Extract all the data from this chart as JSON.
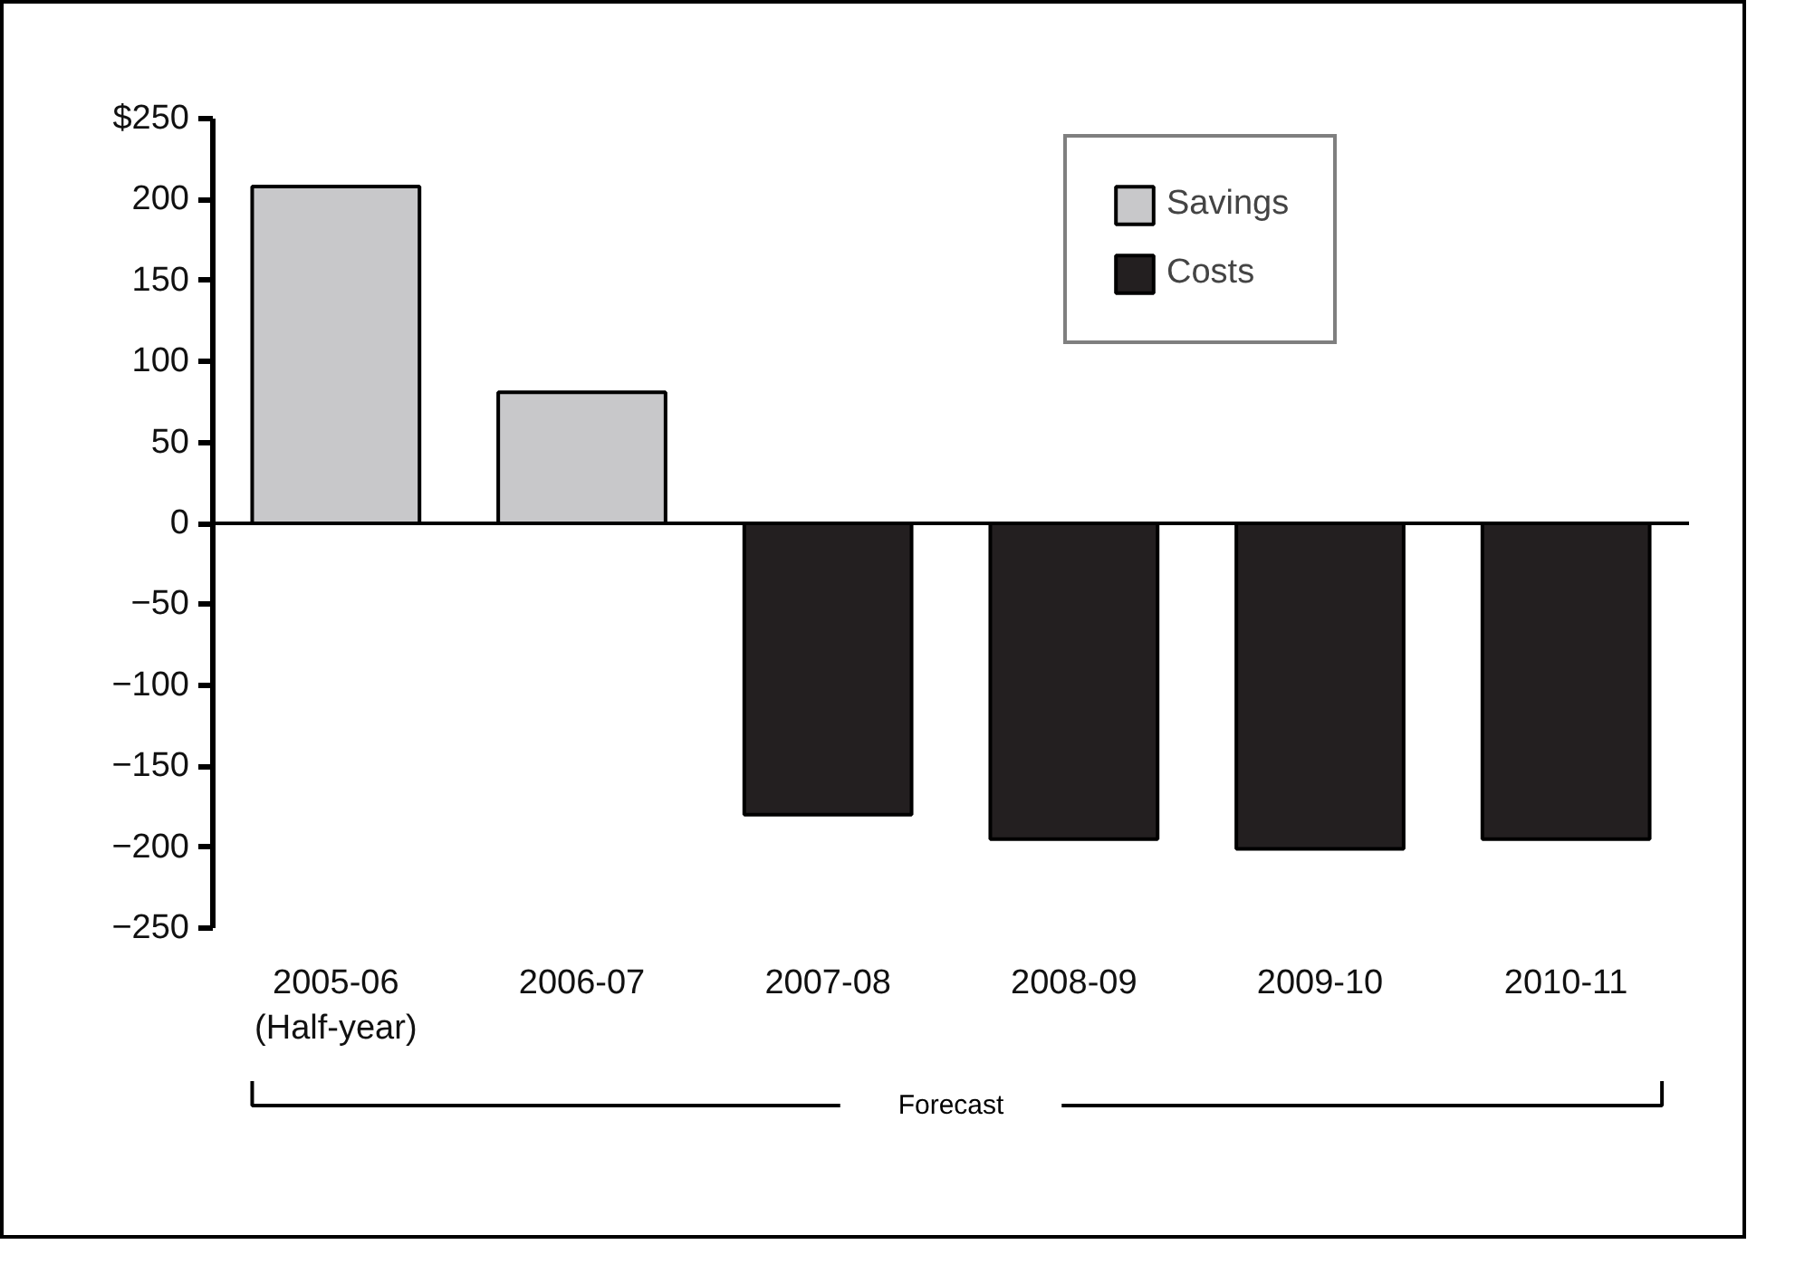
{
  "chart_data": {
    "type": "bar",
    "categories": [
      "2005-06\n(Half-year)",
      "2006-07",
      "2007-08",
      "2008-09",
      "2009-10",
      "2010-11"
    ],
    "series": [
      {
        "name": "Savings",
        "color": "#c8c8ca",
        "values": [
          208,
          81,
          null,
          null,
          null,
          null
        ]
      },
      {
        "name": "Costs",
        "color": "#231f20",
        "values": [
          null,
          null,
          -180,
          -195,
          -201,
          -195
        ]
      }
    ],
    "ylim": [
      -250,
      250
    ],
    "yticks": [
      {
        "value": 250,
        "label": "$250"
      },
      200,
      150,
      100,
      50,
      0,
      -50,
      -100,
      -150,
      -200,
      -250
    ],
    "annotations": [
      "Forecast"
    ],
    "ref_lines": [
      {
        "axis": "y",
        "value": 0,
        "color": "#000000"
      }
    ],
    "grid": false,
    "legend": "top right"
  }
}
